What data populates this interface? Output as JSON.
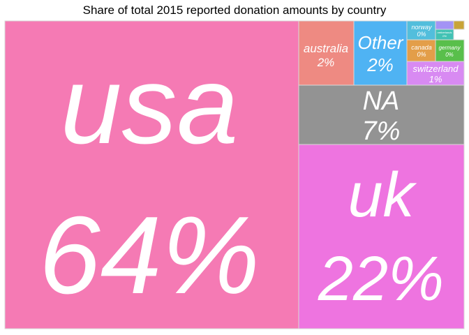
{
  "chart_data": {
    "type": "treemap",
    "title": "Share of total 2015 reported donation amounts by country",
    "unit": "%",
    "tiles": [
      {
        "name": "usa",
        "label": "usa",
        "value_label": "64%",
        "value": 64,
        "color": "#f57ab4"
      },
      {
        "name": "uk",
        "label": "uk",
        "value_label": "22%",
        "value": 22,
        "color": "#ee74e0"
      },
      {
        "name": "NA",
        "label": "NA",
        "value_label": "7%",
        "value": 7,
        "color": "#939393"
      },
      {
        "name": "australia",
        "label": "australia",
        "value_label": "2%",
        "value": 2,
        "color": "#ee8a82"
      },
      {
        "name": "Other",
        "label": "Other",
        "value_label": "2%",
        "value": 2,
        "color": "#4fb3f3"
      },
      {
        "name": "switzerland",
        "label": "switzerland",
        "value_label": "1%",
        "value": 1,
        "color": "#d88af2"
      },
      {
        "name": "norway",
        "label": "norway",
        "value_label": "0%",
        "value": 0,
        "color": "#52bedc"
      },
      {
        "name": "canada",
        "label": "canada",
        "value_label": "0%",
        "value": 0,
        "color": "#e39e49"
      },
      {
        "name": "germany",
        "label": "germany",
        "value_label": "0%",
        "value": 0,
        "color": "#59bf4b"
      },
      {
        "name": "netherlands",
        "label": "netherlands",
        "value_label": "0%",
        "value": 0,
        "color": "#42c2b4"
      },
      {
        "name": "minor-a",
        "label": "",
        "value_label": "",
        "value": 0,
        "color": "#a393f5"
      },
      {
        "name": "minor-b",
        "label": "",
        "value_label": "",
        "value": 0,
        "color": "#c8a438"
      }
    ]
  }
}
